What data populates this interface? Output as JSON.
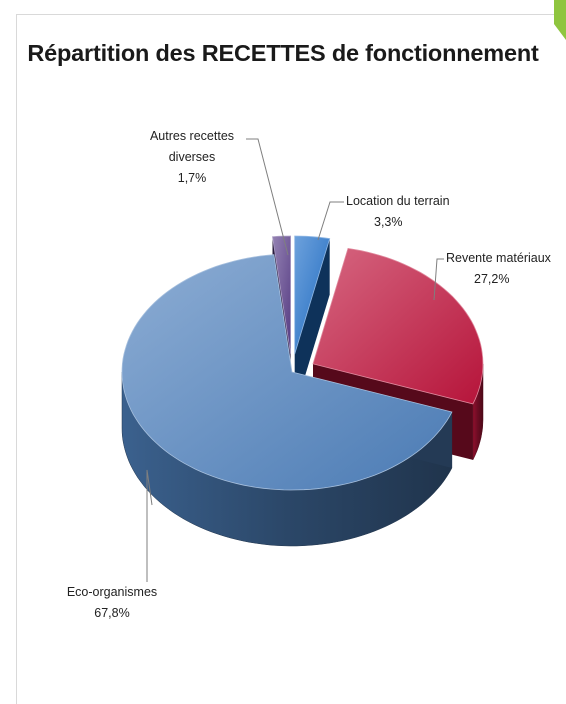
{
  "colors": {
    "eco": "#4f81bd",
    "revente": "#c0153d",
    "location": "#1f6fc9",
    "autres": "#5b3f8a",
    "corner": "#8fc53f"
  },
  "chart_data": {
    "type": "pie",
    "title": "Répartition des RECETTES de fonctionnement",
    "slices": [
      {
        "name": "Location du terrain",
        "value": 3.3,
        "label": "3,3%"
      },
      {
        "name": "Revente matériaux",
        "value": 27.2,
        "label": "27,2%"
      },
      {
        "name": "Eco-organismes",
        "value": 67.8,
        "label": "67,8%"
      },
      {
        "name": "Autres recettes diverses",
        "name_lines": [
          "Autres recettes",
          "diverses"
        ],
        "value": 1.7,
        "label": "1,7%"
      }
    ],
    "style": "3d-exploded",
    "legend": "none"
  }
}
